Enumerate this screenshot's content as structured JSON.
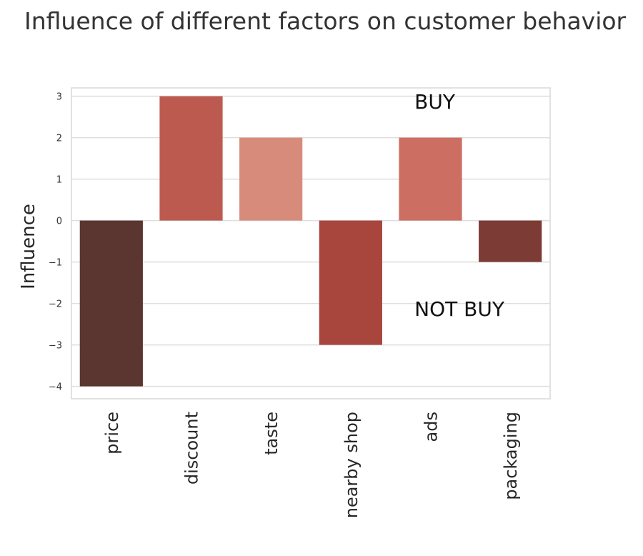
{
  "chart_data": {
    "type": "bar",
    "title": "Influence of different factors on customer behavior",
    "xlabel": "",
    "ylabel": "Influence",
    "categories": [
      "price",
      "discount",
      "taste",
      "nearby shop",
      "ads",
      "packaging"
    ],
    "values": [
      -4,
      3,
      2,
      -3,
      2,
      -1
    ],
    "colors": [
      "#5b3530",
      "#bd5a50",
      "#d78b7b",
      "#a8453d",
      "#cd6e63",
      "#7d3b35"
    ],
    "ylim": [
      -4.3,
      3.2
    ],
    "yticks": [
      3,
      2,
      1,
      0,
      -1,
      -2,
      -3,
      -4
    ],
    "ytick_labels": [
      "3",
      "2",
      "1",
      "0",
      "−1",
      "−2",
      "−3",
      "−4"
    ],
    "grid": true,
    "annotations": [
      {
        "text": "BUY",
        "x": 4.3,
        "y": 2.7
      },
      {
        "text": "NOT BUY",
        "x": 4.3,
        "y": -2.3
      }
    ]
  }
}
